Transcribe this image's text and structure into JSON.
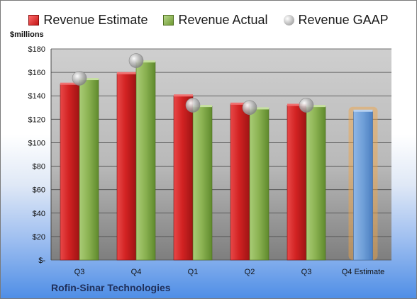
{
  "legend": {
    "estimate_label": "Revenue Estimate",
    "actual_label": "Revenue Actual",
    "gaap_label": "Revenue GAAP"
  },
  "y_unit": "$millions",
  "company": "Rofin-Sinar Technologies",
  "colors": {
    "estimate": "#d42a2a",
    "actual": "#8fb85a",
    "gaap": "#a9a9a9",
    "future_estimate": "#6f9fd8",
    "future_glow": "#f5a541",
    "plot_bg_top": "#c9c9c9",
    "plot_bg_bottom": "#8a8a8a"
  },
  "chart_data": {
    "type": "bar",
    "categories": [
      "Q3",
      "Q4",
      "Q1",
      "Q2",
      "Q3",
      "Q4 Estimate"
    ],
    "series": [
      {
        "name": "Revenue Estimate",
        "values": [
          150,
          159,
          140,
          133,
          132,
          null
        ]
      },
      {
        "name": "Revenue Actual",
        "values": [
          154,
          169,
          131,
          129,
          131,
          null
        ]
      },
      {
        "name": "Revenue GAAP",
        "values": [
          155,
          170,
          132,
          130,
          132,
          null
        ]
      },
      {
        "name": "Revenue Estimate",
        "values": [
          null,
          null,
          null,
          null,
          null,
          127
        ]
      }
    ],
    "ylim": [
      0,
      180
    ],
    "yticks": [
      0,
      20,
      40,
      60,
      80,
      100,
      120,
      140,
      160,
      180
    ],
    "ytick_labels": [
      "$-",
      "$20",
      "$40",
      "$60",
      "$80",
      "$100",
      "$120",
      "$140",
      "$160",
      "$180"
    ],
    "grid": true,
    "legend_position": "top"
  }
}
